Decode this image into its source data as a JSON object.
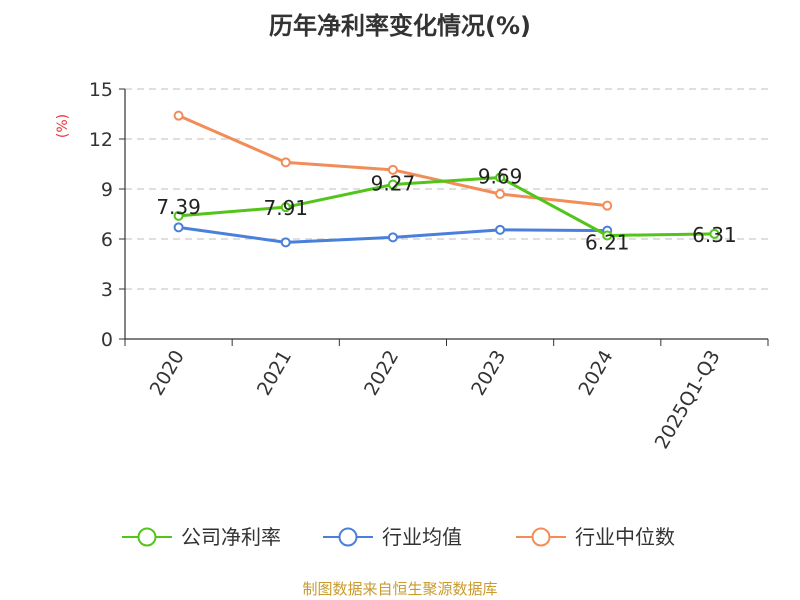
{
  "chart_data": {
    "type": "line",
    "title": "历年净利率变化情况(%)",
    "ylabel": "(%)",
    "xlabel": "",
    "categories": [
      "2020",
      "2021",
      "2022",
      "2023",
      "2024",
      "2025Q1-Q3"
    ],
    "ylim": [
      0,
      15
    ],
    "yticks": [
      0,
      3,
      6,
      9,
      12,
      15
    ],
    "grid": true,
    "legend_position": "bottom",
    "series": [
      {
        "name": "公司净利率",
        "color": "#52c41a",
        "values": [
          7.39,
          7.91,
          9.27,
          9.69,
          6.21,
          6.31
        ],
        "labels": [
          "7.39",
          "7.91",
          "9.27",
          "9.69",
          "6.21",
          "6.31"
        ]
      },
      {
        "name": "行业均值",
        "color": "#4a7fdc",
        "values": [
          6.7,
          5.8,
          6.1,
          6.55,
          6.5,
          null
        ],
        "labels": null
      },
      {
        "name": "行业中位数",
        "color": "#f28c58",
        "values": [
          13.4,
          10.6,
          10.15,
          8.7,
          8.0,
          null
        ],
        "labels": null
      }
    ]
  },
  "source_text": "制图数据来自恒生聚源数据库"
}
